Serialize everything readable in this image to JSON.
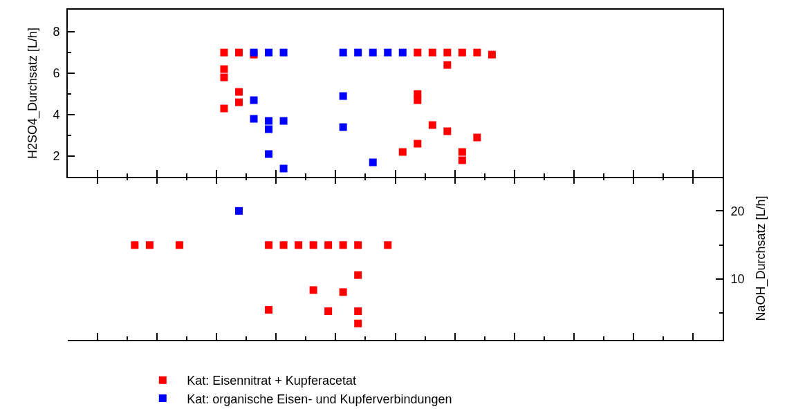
{
  "chart_data": [
    {
      "type": "scatter",
      "categories": [
        null,
        null,
        null,
        null,
        null,
        null,
        null,
        null,
        null,
        null,
        null,
        null,
        null,
        null,
        null,
        null,
        null,
        null,
        null,
        null,
        null,
        null,
        null,
        null,
        null,
        null,
        null,
        null,
        null,
        null,
        null,
        null,
        null,
        null,
        null,
        null,
        null,
        null,
        null,
        null,
        null,
        null,
        null,
        null
      ],
      "ylabel": "H2SO4_Durchsatz [L/h]",
      "ylim": [
        1,
        9.07
      ],
      "yticks": [
        2,
        {
          "value": 3,
          "label": null
        },
        4,
        {
          "value": 5,
          "label": null
        },
        6,
        {
          "value": 7,
          "label": null
        },
        8
      ],
      "grid": false,
      "legend": false,
      "marker": "square",
      "series": [
        {
          "color": "#ff0000",
          "values": [
            null,
            null,
            null,
            null,
            null,
            null,
            null,
            null,
            null,
            null,
            7,
            7,
            6.9,
            null,
            null,
            null,
            null,
            null,
            null,
            null,
            null,
            null,
            null,
            7,
            7,
            7,
            7,
            7,
            6.9,
            null,
            null,
            null,
            null,
            null,
            null,
            null,
            null,
            null,
            null,
            null,
            null,
            null,
            null,
            null
          ]
        },
        {
          "color": "#ff0000",
          "values": [
            null,
            null,
            null,
            null,
            null,
            null,
            null,
            null,
            null,
            null,
            6.2,
            5.1,
            null,
            null,
            null,
            null,
            null,
            null,
            null,
            null,
            null,
            null,
            2.2,
            5.0,
            3.5,
            6.4,
            2.2,
            2.9,
            null,
            null,
            null,
            null,
            null,
            null,
            null,
            null,
            null,
            null,
            null,
            null,
            null,
            null,
            null,
            null
          ]
        },
        {
          "color": "#ff0000",
          "values": [
            null,
            null,
            null,
            null,
            null,
            null,
            null,
            null,
            null,
            null,
            5.8,
            4.6,
            null,
            null,
            null,
            null,
            null,
            null,
            null,
            null,
            null,
            null,
            null,
            4.7,
            null,
            3.2,
            1.8,
            null,
            null,
            null,
            null,
            null,
            null,
            null,
            null,
            null,
            null,
            null,
            null,
            null,
            null,
            null,
            null,
            null
          ]
        },
        {
          "color": "#ff0000",
          "values": [
            null,
            null,
            null,
            null,
            null,
            null,
            null,
            null,
            null,
            null,
            4.3,
            null,
            null,
            null,
            null,
            null,
            null,
            null,
            null,
            null,
            null,
            null,
            null,
            2.6,
            null,
            null,
            null,
            null,
            null,
            null,
            null,
            null,
            null,
            null,
            null,
            null,
            null,
            null,
            null,
            null,
            null,
            null,
            null,
            null
          ]
        },
        {
          "color": "#0000ff",
          "values": [
            null,
            null,
            null,
            null,
            null,
            null,
            null,
            null,
            null,
            null,
            null,
            null,
            7,
            7,
            7,
            null,
            null,
            null,
            7,
            7,
            7,
            7,
            7,
            null,
            null,
            null,
            null,
            null,
            null,
            null,
            null,
            null,
            null,
            null,
            null,
            null,
            null,
            null,
            null,
            null,
            null,
            null,
            null,
            null
          ]
        },
        {
          "color": "#0000ff",
          "values": [
            null,
            null,
            null,
            null,
            null,
            null,
            null,
            null,
            null,
            null,
            null,
            null,
            4.7,
            3.7,
            3.7,
            null,
            null,
            null,
            4.9,
            null,
            1.7,
            null,
            null,
            null,
            null,
            null,
            null,
            null,
            null,
            null,
            null,
            null,
            null,
            null,
            null,
            null,
            null,
            null,
            null,
            null,
            null,
            null,
            null,
            null
          ]
        },
        {
          "color": "#0000ff",
          "values": [
            null,
            null,
            null,
            null,
            null,
            null,
            null,
            null,
            null,
            null,
            null,
            null,
            3.8,
            3.3,
            1.4,
            null,
            null,
            null,
            3.4,
            null,
            null,
            null,
            null,
            null,
            null,
            null,
            null,
            null,
            null,
            null,
            null,
            null,
            null,
            null,
            null,
            null,
            null,
            null,
            null,
            null,
            null,
            null,
            null,
            null
          ]
        },
        {
          "color": "#0000ff",
          "values": [
            null,
            null,
            null,
            null,
            null,
            null,
            null,
            null,
            null,
            null,
            null,
            null,
            null,
            2.1,
            null,
            null,
            null,
            null,
            null,
            null,
            null,
            null,
            null,
            null,
            null,
            null,
            null,
            null,
            null,
            null,
            null,
            null,
            null,
            null,
            null,
            null,
            null,
            null,
            null,
            null,
            null,
            null,
            null,
            null
          ]
        }
      ]
    },
    {
      "type": "scatter",
      "categories": [
        null,
        null,
        null,
        null,
        null,
        null,
        null,
        null,
        null,
        null,
        null,
        null,
        null,
        null,
        null,
        null,
        null,
        null,
        null,
        null,
        null,
        null,
        null,
        null,
        null,
        null,
        null,
        null,
        null,
        null,
        null,
        null,
        null,
        null,
        null,
        null,
        null,
        null,
        null,
        null,
        null,
        null,
        null,
        null
      ],
      "y2label": "NaOH_Durchsatz [L/h]",
      "y2lim": [
        1.1,
        25
      ],
      "y2ticks": [
        {
          "value": 5,
          "label": null
        },
        10,
        {
          "value": 15,
          "label": null
        },
        20
      ],
      "grid": false,
      "legend": "bottom",
      "marker": "square",
      "series": [
        {
          "name": "Kat: Eisennitrat + Kupferacetat",
          "axis": "y2",
          "color": "#ff0000",
          "values": [
            null,
            null,
            null,
            null,
            15,
            15,
            null,
            15,
            null,
            null,
            null,
            null,
            null,
            15,
            15,
            15,
            15,
            15,
            15,
            15,
            null,
            15,
            null,
            null,
            null,
            null,
            null,
            null,
            null,
            null,
            null,
            null,
            null,
            null,
            null,
            null,
            null,
            null,
            null,
            null,
            null,
            null,
            null,
            null
          ]
        },
        {
          "axis": "y2",
          "color": "#ff0000",
          "values": [
            null,
            null,
            null,
            null,
            null,
            null,
            null,
            null,
            null,
            null,
            null,
            null,
            null,
            5.5,
            null,
            null,
            8.4,
            5.3,
            8.1,
            10.6,
            null,
            null,
            null,
            null,
            null,
            null,
            null,
            null,
            null,
            null,
            null,
            null,
            null,
            null,
            null,
            null,
            null,
            null,
            null,
            null,
            null,
            null,
            null,
            null
          ]
        },
        {
          "axis": "y2",
          "color": "#ff0000",
          "values": [
            null,
            null,
            null,
            null,
            null,
            null,
            null,
            null,
            null,
            null,
            null,
            null,
            null,
            null,
            null,
            null,
            null,
            null,
            null,
            5.3,
            null,
            null,
            null,
            null,
            null,
            null,
            null,
            null,
            null,
            null,
            null,
            null,
            null,
            null,
            null,
            null,
            null,
            null,
            null,
            null,
            null,
            null,
            null,
            null
          ]
        },
        {
          "axis": "y2",
          "color": "#ff0000",
          "values": [
            null,
            null,
            null,
            null,
            null,
            null,
            null,
            null,
            null,
            null,
            null,
            null,
            null,
            null,
            null,
            null,
            null,
            null,
            null,
            3.5,
            null,
            null,
            null,
            null,
            null,
            null,
            null,
            null,
            null,
            null,
            null,
            null,
            null,
            null,
            null,
            null,
            null,
            null,
            null,
            null,
            null,
            null,
            null,
            null
          ]
        },
        {
          "name": "Kat: organische Eisen- und Kupferverbindungen",
          "axis": "y2",
          "color": "#0000ff",
          "values": [
            null,
            null,
            null,
            null,
            null,
            null,
            null,
            null,
            null,
            null,
            null,
            20,
            null,
            null,
            null,
            null,
            null,
            null,
            null,
            null,
            null,
            null,
            null,
            null,
            null,
            null,
            null,
            null,
            null,
            null,
            null,
            null,
            null,
            null,
            null,
            null,
            null,
            null,
            null,
            null,
            null,
            null,
            null,
            null
          ]
        }
      ]
    }
  ]
}
